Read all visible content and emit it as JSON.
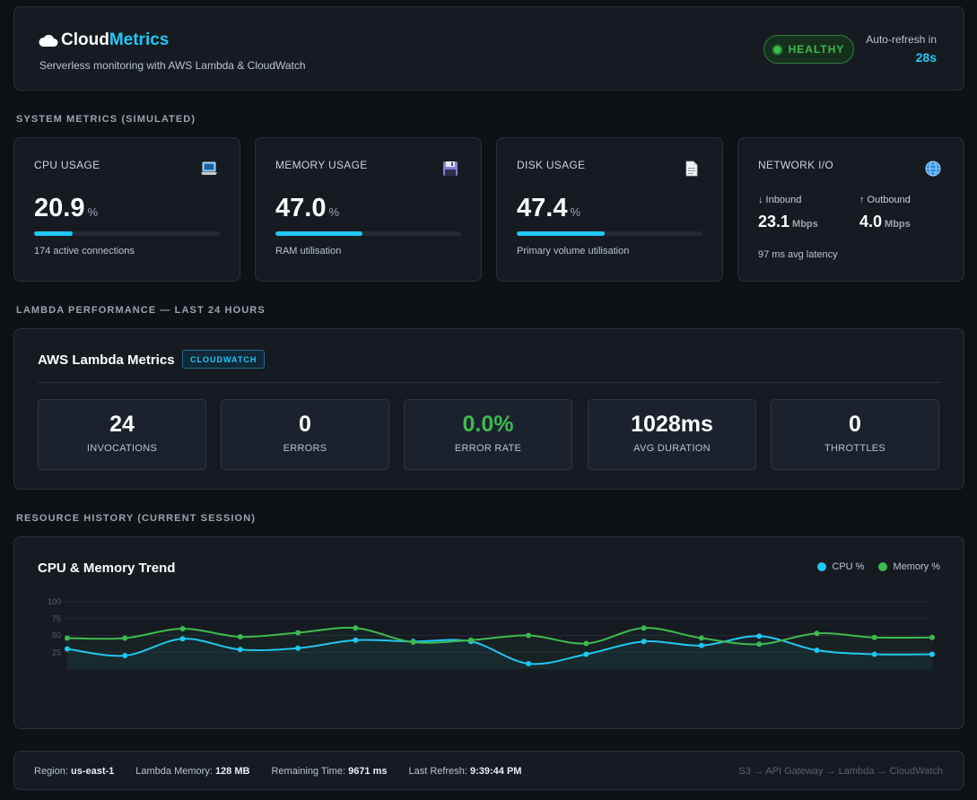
{
  "header": {
    "brand_main": "Cloud",
    "brand_accent": "Metrics",
    "tagline": "Serverless monitoring with AWS Lambda & CloudWatch",
    "status": "HEALTHY",
    "refresh_label": "Auto-refresh in",
    "refresh_value": "28s"
  },
  "sections": {
    "system": "SYSTEM METRICS (SIMULATED)",
    "lambda": "LAMBDA PERFORMANCE — LAST 24 HOURS",
    "history": "RESOURCE HISTORY (CURRENT SESSION)"
  },
  "metrics": {
    "cpu": {
      "label": "CPU USAGE",
      "icon": "laptop-icon",
      "value": "20.9",
      "unit": "%",
      "percent": 20.9,
      "sub": "174 active connections"
    },
    "memory": {
      "label": "MEMORY USAGE",
      "icon": "floppy-disk-icon",
      "value": "47.0",
      "unit": "%",
      "percent": 47.0,
      "sub": "RAM utilisation"
    },
    "disk": {
      "label": "DISK USAGE",
      "icon": "document-icon",
      "value": "47.4",
      "unit": "%",
      "percent": 47.4,
      "sub": "Primary volume utilisation"
    },
    "network": {
      "label": "NETWORK I/O",
      "icon": "globe-icon",
      "inbound_label": "↓ Inbound",
      "inbound_value": "23.1",
      "inbound_unit": "Mbps",
      "outbound_label": "↑ Outbound",
      "outbound_value": "4.0",
      "outbound_unit": "Mbps",
      "latency": "97 ms avg latency"
    }
  },
  "lambda": {
    "title": "AWS Lambda Metrics",
    "badge": "CLOUDWATCH",
    "stats": [
      {
        "value": "24",
        "label": "INVOCATIONS",
        "color": "#ffffff"
      },
      {
        "value": "0",
        "label": "ERRORS",
        "color": "#ffffff"
      },
      {
        "value": "0.0%",
        "label": "ERROR RATE",
        "color": "#3fb950"
      },
      {
        "value": "1028ms",
        "label": "AVG DURATION",
        "color": "#ffffff"
      },
      {
        "value": "0",
        "label": "THROTTLES",
        "color": "#ffffff"
      }
    ]
  },
  "history": {
    "title": "CPU & Memory Trend"
  },
  "chart_data": {
    "type": "line",
    "title": "CPU & Memory Trend",
    "xlabel": "",
    "ylabel": "",
    "ylim": [
      0,
      100
    ],
    "yticks": [
      25,
      50,
      75,
      100
    ],
    "grid": true,
    "legend": "top-right",
    "x": [
      1,
      2,
      3,
      4,
      5,
      6,
      7,
      8,
      9,
      10,
      11,
      12,
      13,
      14,
      15,
      16
    ],
    "series": [
      {
        "name": "CPU %",
        "color": "#1fc8f7",
        "values": [
          30,
          20,
          45,
          29,
          31,
          43,
          41,
          41,
          8,
          22,
          41,
          35,
          49,
          28,
          22,
          22
        ]
      },
      {
        "name": "Memory %",
        "color": "#3fb950",
        "values": [
          46,
          46,
          60,
          48,
          54,
          61,
          40,
          43,
          50,
          38,
          61,
          46,
          37,
          53,
          47,
          47
        ]
      }
    ]
  },
  "footer": {
    "region_label": "Region:",
    "region_value": "us-east-1",
    "memory_label": "Lambda Memory:",
    "memory_value": "128 MB",
    "remaining_label": "Remaining Time:",
    "remaining_value": "9671 ms",
    "refresh_label": "Last Refresh:",
    "refresh_value": "9:39:44 PM",
    "architecture": "S3 → API Gateway → Lambda → CloudWatch"
  }
}
